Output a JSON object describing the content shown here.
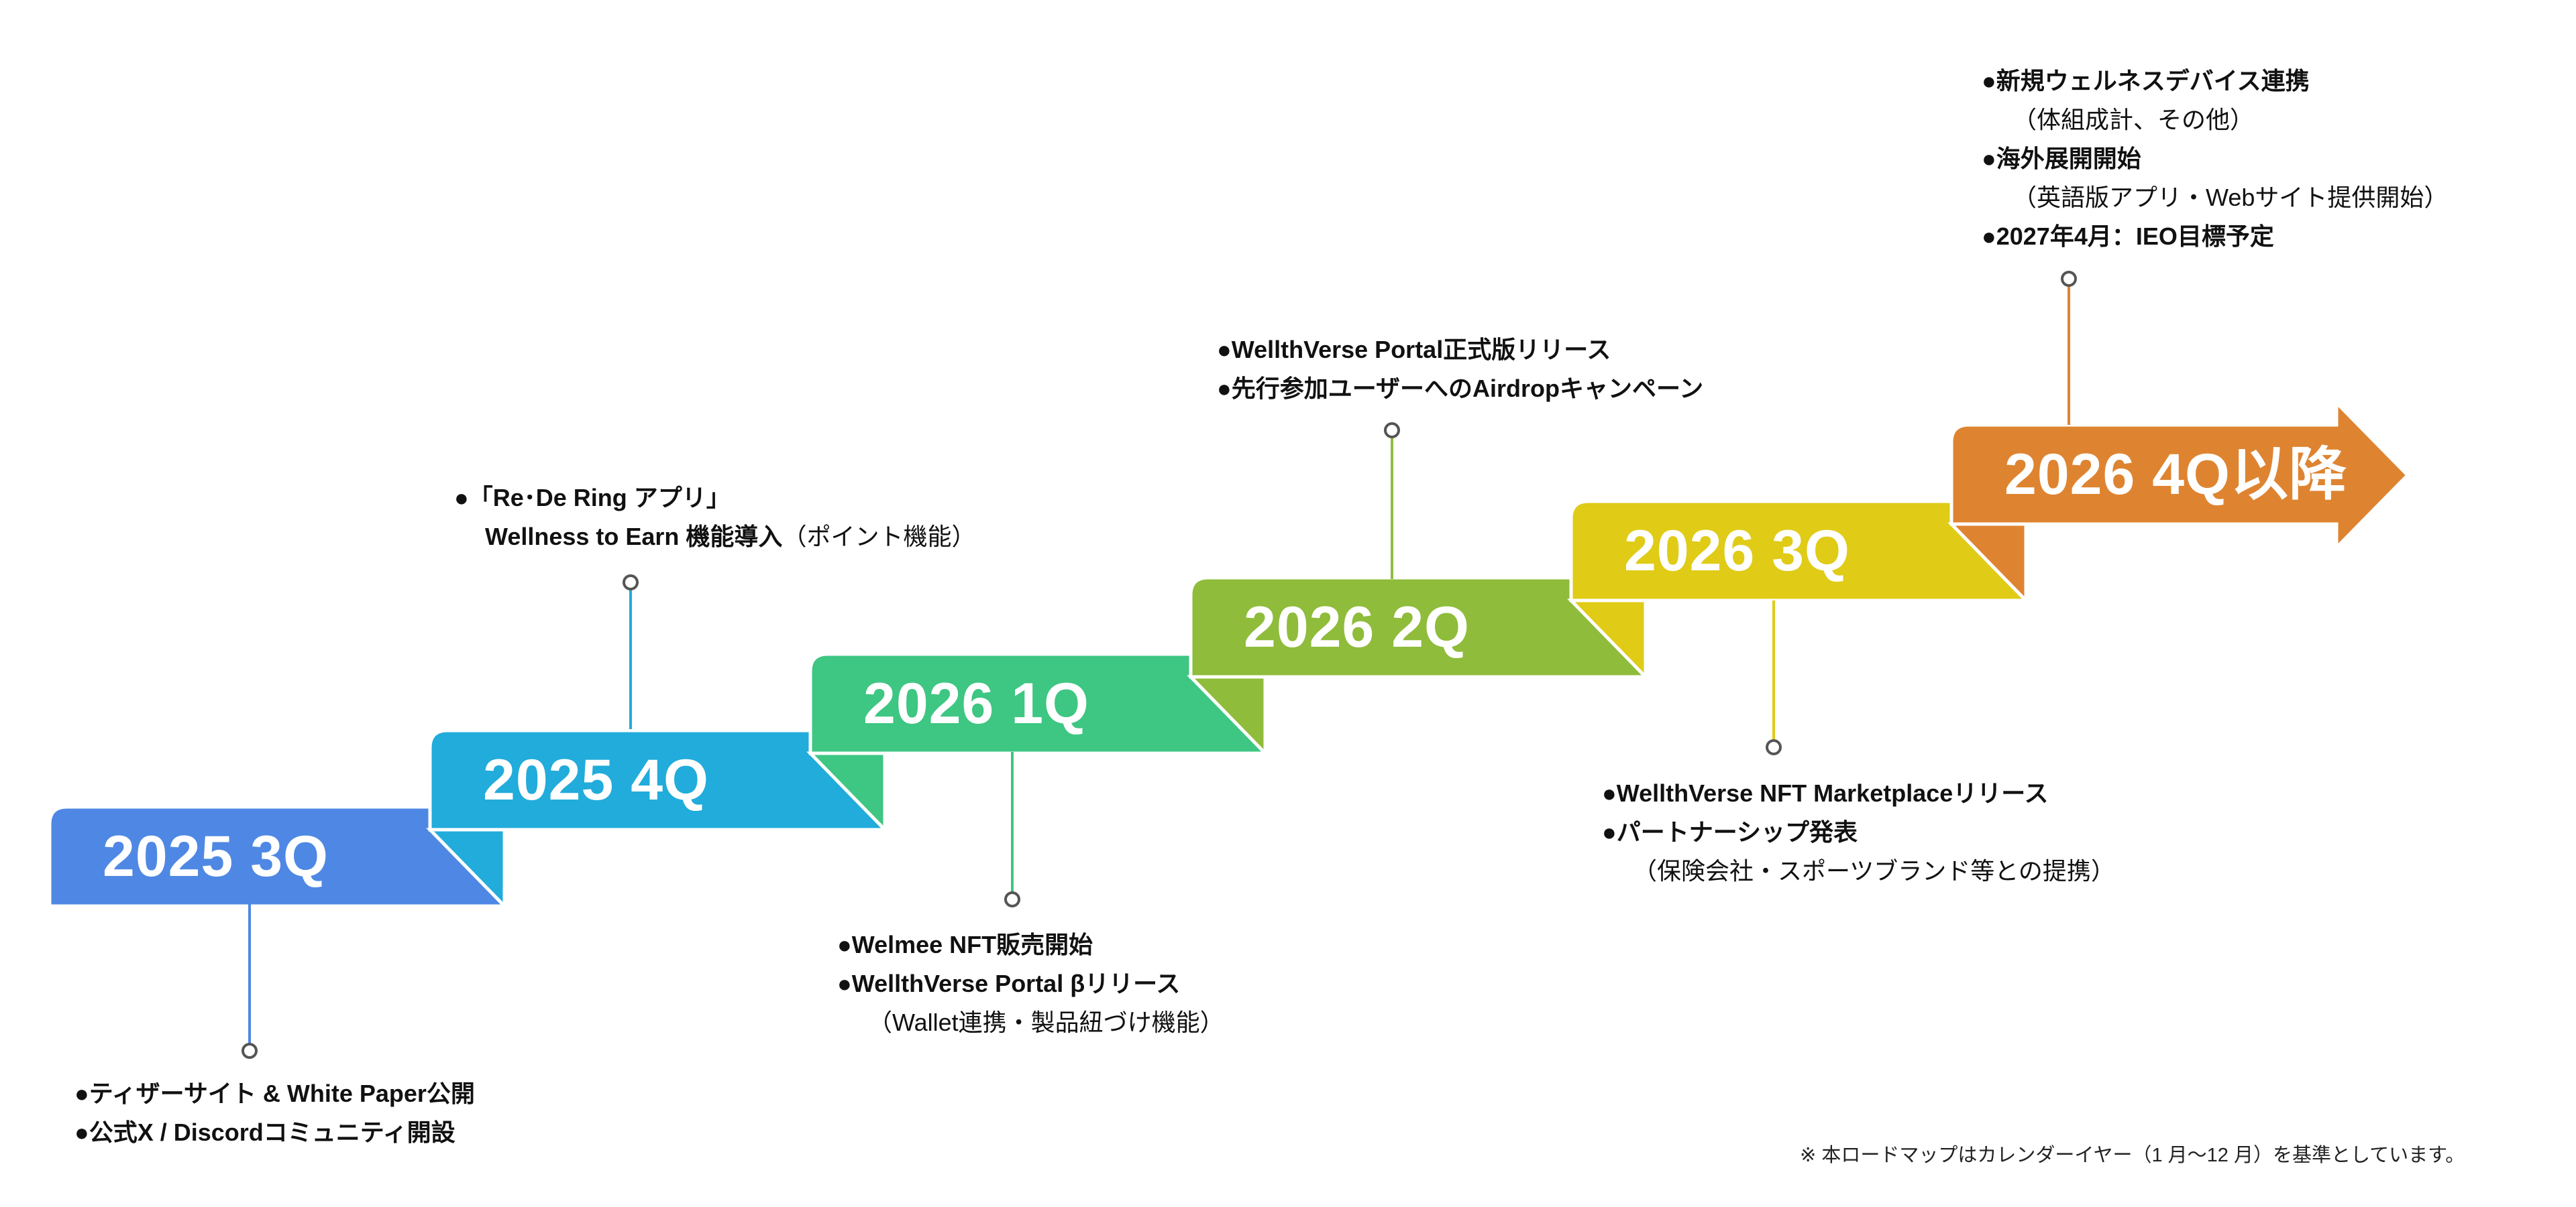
{
  "milestones": [
    {
      "label": "2025 3Q",
      "color": "#4f88e4",
      "lines": [
        {
          "text": "●ティザーサイト & White Paper公開"
        },
        {
          "text": "●公式X / Discordコミュニティ開設"
        }
      ]
    },
    {
      "label": "2025 4Q",
      "color": "#21acdb",
      "lines": [
        {
          "text": "●「Re･De Ring アプリ」"
        },
        {
          "text": "Wellness to Earn 機能導入",
          "note": "（ポイント機能）"
        }
      ]
    },
    {
      "label": "2026 1Q",
      "color": "#3ec683",
      "lines": [
        {
          "text": "●Welmee NFT販売開始"
        },
        {
          "text": "●WellthVerse Portal βリリース"
        },
        {
          "note": "（Wallet連携・製品紐づけ機能）"
        }
      ]
    },
    {
      "label": "2026 2Q",
      "color": "#8fbc3b",
      "lines": [
        {
          "text": "●WellthVerse Portal正式版リリース"
        },
        {
          "text": "●先行参加ユーザーへのAirdropキャンペーン"
        }
      ]
    },
    {
      "label": "2026 3Q",
      "color": "#e0cb17",
      "lines": [
        {
          "text": "●WellthVerse NFT Marketplaceリリース"
        },
        {
          "text": "●パートナーシップ発表"
        },
        {
          "note": "（保険会社・スポーツブランド等との提携）"
        }
      ]
    },
    {
      "label": "2026 4Q以降",
      "color": "#de8431",
      "lines": [
        {
          "text": "●新規ウェルネスデバイス連携"
        },
        {
          "note": "（体組成計、その他）"
        },
        {
          "text": "●海外展開開始"
        },
        {
          "note": "（英語版アプリ・Webサイト提供開始）"
        },
        {
          "text": "●2027年4月：IEO目標予定"
        }
      ]
    }
  ],
  "footer": "※ 本ロードマップはカレンダーイヤー（1 月〜12 月）を基準としています。"
}
